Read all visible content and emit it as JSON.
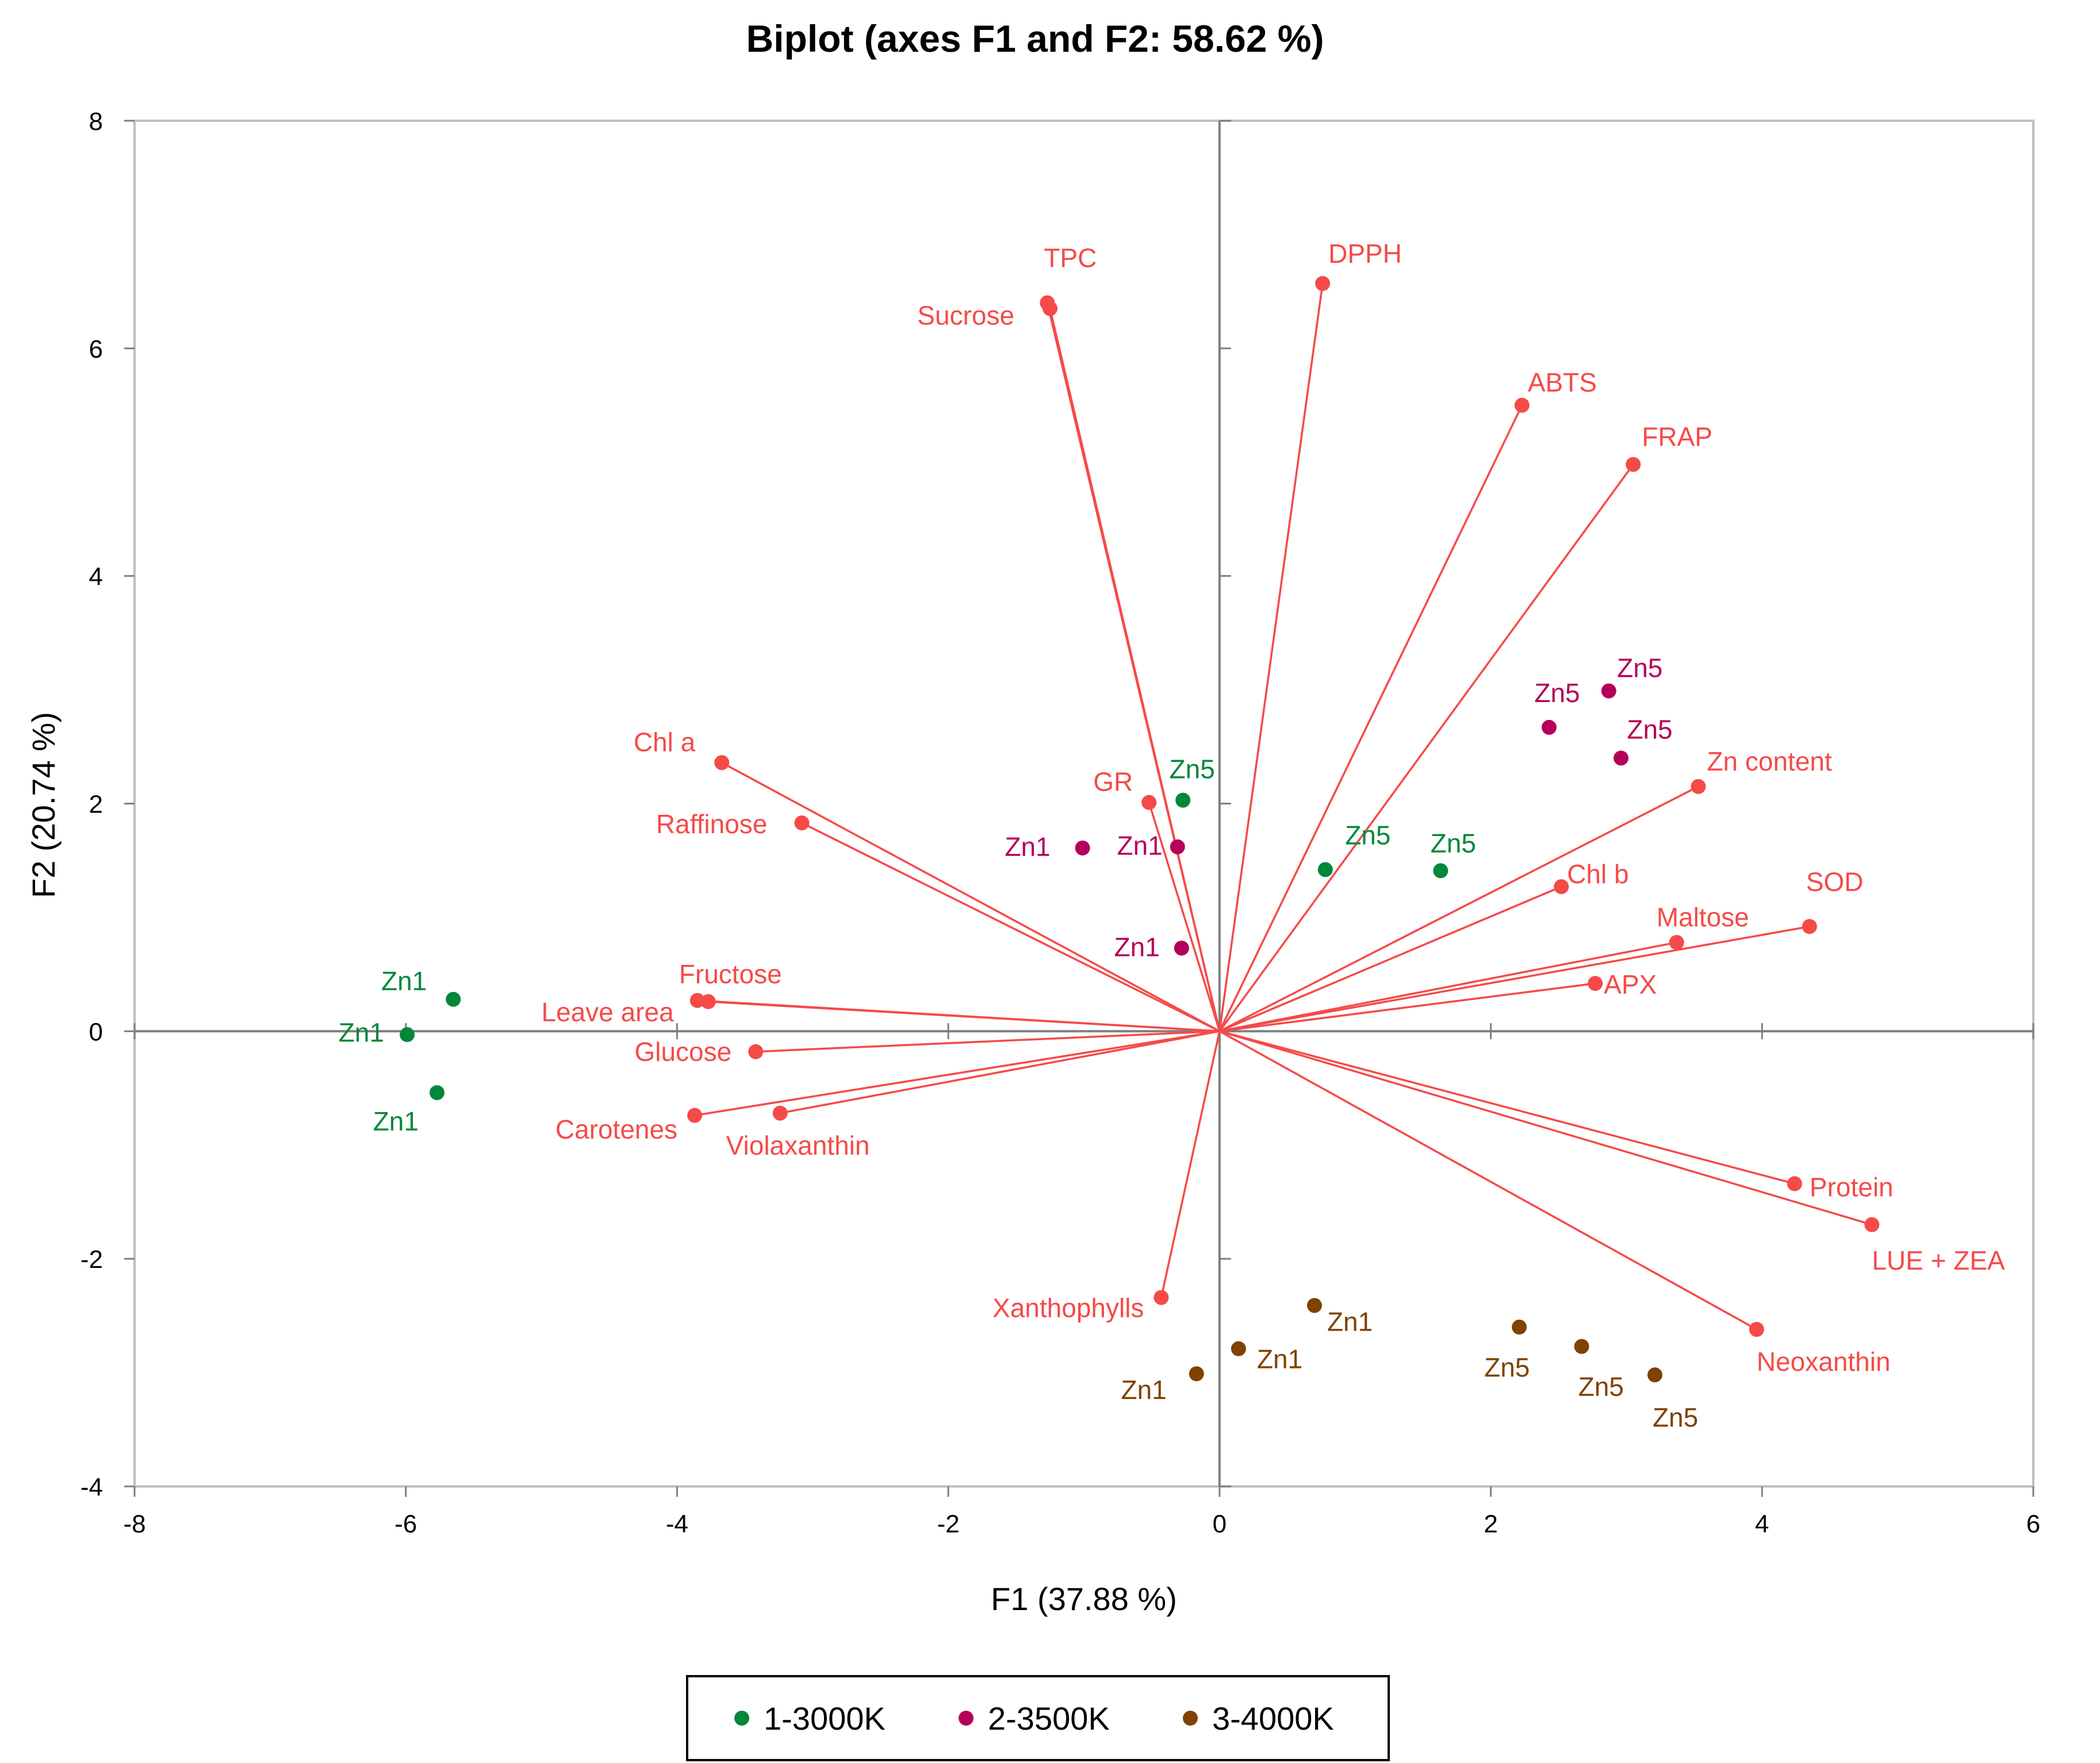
{
  "chart_data": {
    "type": "scatter",
    "subtype": "pca-biplot",
    "title": "Biplot (axes F1 and F2: 58.62 %)",
    "xlabel": "F1 (37.88 %)",
    "ylabel": "F2 (20.74 %)",
    "xlim": [
      -8,
      6
    ],
    "ylim": [
      -4,
      8
    ],
    "xticks": [
      -8,
      -6,
      -4,
      -2,
      0,
      2,
      4,
      6
    ],
    "yticks": [
      -4,
      -2,
      0,
      2,
      4,
      6,
      8
    ],
    "grid": false,
    "legend_position": "bottom-center",
    "variable_color": "#f54a48",
    "variables": [
      {
        "name": "TPC",
        "x": -1.27,
        "y": 6.4
      },
      {
        "name": "Sucrose",
        "x": -1.25,
        "y": 6.35
      },
      {
        "name": "DPPH",
        "x": 0.76,
        "y": 6.57
      },
      {
        "name": "ABTS",
        "x": 2.23,
        "y": 5.5
      },
      {
        "name": "FRAP",
        "x": 3.05,
        "y": 4.98
      },
      {
        "name": "Chl a",
        "x": -3.67,
        "y": 2.36
      },
      {
        "name": "Raffinose",
        "x": -3.08,
        "y": 1.83
      },
      {
        "name": "GR",
        "x": -0.52,
        "y": 2.01
      },
      {
        "name": "Zn content",
        "x": 3.53,
        "y": 2.15
      },
      {
        "name": "Chl b",
        "x": 2.52,
        "y": 1.27
      },
      {
        "name": "SOD",
        "x": 4.35,
        "y": 0.92
      },
      {
        "name": "Maltose",
        "x": 3.37,
        "y": 0.78
      },
      {
        "name": "APX",
        "x": 2.77,
        "y": 0.42
      },
      {
        "name": "Fructose",
        "x": -3.85,
        "y": 0.27
      },
      {
        "name": "Leave area",
        "x": -3.77,
        "y": 0.26
      },
      {
        "name": "Glucose",
        "x": -3.42,
        "y": -0.18
      },
      {
        "name": "Carotenes",
        "x": -3.87,
        "y": -0.74
      },
      {
        "name": "Violaxanthin",
        "x": -3.24,
        "y": -0.72
      },
      {
        "name": "Protein",
        "x": 4.24,
        "y": -1.34
      },
      {
        "name": "LUE + ZEA",
        "x": 4.81,
        "y": -1.7
      },
      {
        "name": "Neoxanthin",
        "x": 3.96,
        "y": -2.62
      },
      {
        "name": "Xanthophylls",
        "x": -0.43,
        "y": -2.34
      }
    ],
    "series": [
      {
        "name": "1-3000K",
        "color": "#00883a",
        "points": [
          {
            "label": "Zn1",
            "x": -5.65,
            "y": 0.28
          },
          {
            "label": "Zn1",
            "x": -5.99,
            "y": -0.03
          },
          {
            "label": "Zn1",
            "x": -5.77,
            "y": -0.54
          },
          {
            "label": "Zn5",
            "x": -0.27,
            "y": 2.03
          },
          {
            "label": "Zn5",
            "x": 0.78,
            "y": 1.42
          },
          {
            "label": "Zn5",
            "x": 1.63,
            "y": 1.41
          }
        ]
      },
      {
        "name": "2-3500K",
        "color": "#b5005a",
        "points": [
          {
            "label": "Zn1",
            "x": -1.01,
            "y": 1.61
          },
          {
            "label": "Zn1",
            "x": -0.31,
            "y": 1.62
          },
          {
            "label": "Zn1",
            "x": -0.28,
            "y": 0.73
          },
          {
            "label": "Zn5",
            "x": 2.43,
            "y": 2.67
          },
          {
            "label": "Zn5",
            "x": 2.87,
            "y": 2.99
          },
          {
            "label": "Zn5",
            "x": 2.96,
            "y": 2.4
          }
        ]
      },
      {
        "name": "3-4000K",
        "color": "#7f4200",
        "points": [
          {
            "label": "Zn1",
            "x": 0.7,
            "y": -2.41
          },
          {
            "label": "Zn1",
            "x": 0.14,
            "y": -2.79
          },
          {
            "label": "Zn1",
            "x": -0.17,
            "y": -3.01
          },
          {
            "label": "Zn5",
            "x": 2.21,
            "y": -2.6
          },
          {
            "label": "Zn5",
            "x": 2.67,
            "y": -2.77
          },
          {
            "label": "Zn5",
            "x": 3.21,
            "y": -3.02
          }
        ]
      }
    ]
  }
}
